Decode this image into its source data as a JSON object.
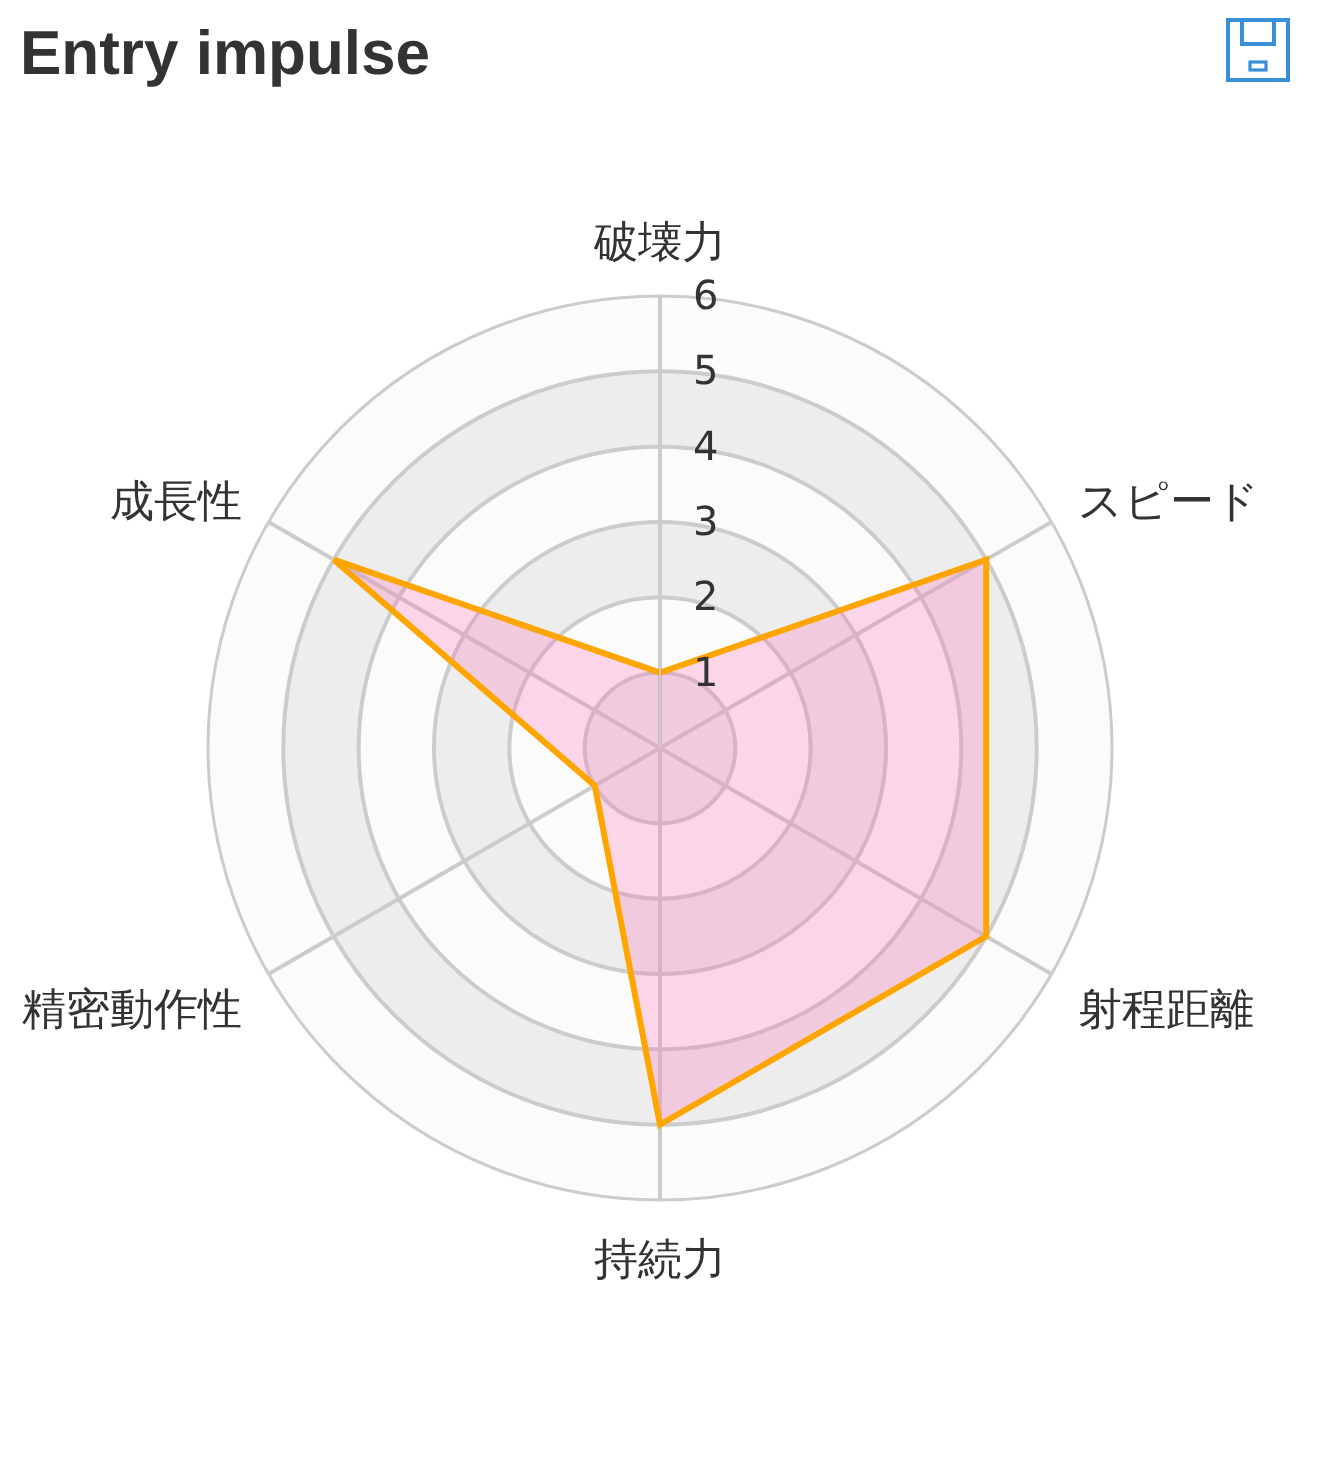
{
  "chart_data": {
    "type": "radar",
    "title": "Entry impulse",
    "categories": [
      "破壊力",
      "スピード",
      "射程距離",
      "持続力",
      "精密動作性",
      "成長性"
    ],
    "series": [
      {
        "color": "#ffa500",
        "values": [
          1,
          5,
          5,
          5,
          1,
          5
        ]
      }
    ],
    "ylim": [
      0,
      6
    ],
    "yticks": [
      1,
      2,
      3,
      4,
      5,
      6
    ],
    "grid": true,
    "marker": "none"
  }
}
